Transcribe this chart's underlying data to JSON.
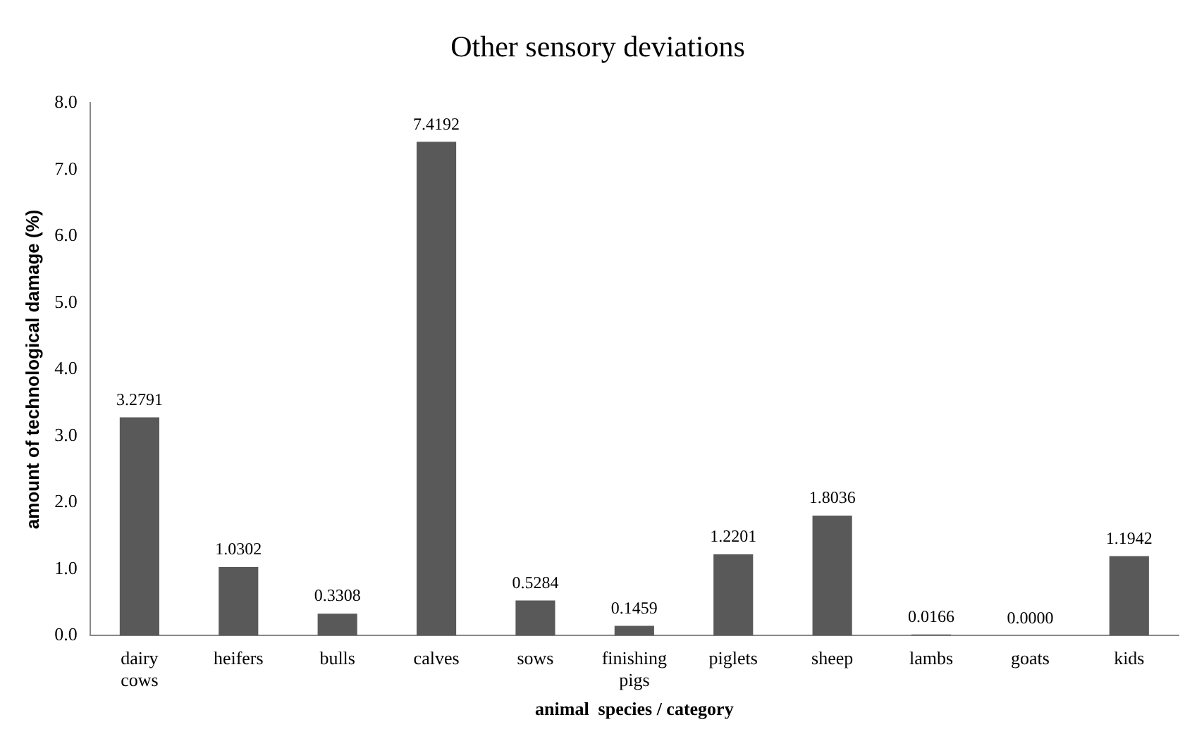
{
  "chart_data": {
    "type": "bar",
    "title": "Other sensory deviations",
    "xlabel": "animal  species / category",
    "ylabel": "amount of technological damage (%)",
    "categories": [
      "dairy cows",
      "heifers",
      "bulls",
      "calves",
      "sows",
      "finishing pigs",
      "piglets",
      "sheep",
      "lambs",
      "goats",
      "kids"
    ],
    "values": [
      3.2791,
      1.0302,
      0.3308,
      7.4192,
      0.5284,
      0.1459,
      1.2201,
      1.8036,
      0.0166,
      0.0,
      1.1942
    ],
    "value_labels": [
      "3.2791",
      "1.0302",
      "0.3308",
      "7.4192",
      "0.5284",
      "0.1459",
      "1.2201",
      "1.8036",
      "0.0166",
      "0.0000",
      "1.1942"
    ],
    "color": "#595959",
    "ylim": [
      0,
      8
    ],
    "yticks": [
      {
        "value": 0,
        "label": "0.0"
      },
      {
        "value": 1,
        "label": "1.0"
      },
      {
        "value": 2,
        "label": "2.0"
      },
      {
        "value": 3,
        "label": "3.0"
      },
      {
        "value": 4,
        "label": "4.0"
      },
      {
        "value": 5,
        "label": "5.0"
      },
      {
        "value": 6,
        "label": "6.0"
      },
      {
        "value": 7,
        "label": "7.0"
      },
      {
        "value": 8,
        "label": "8.0"
      }
    ],
    "grid": false,
    "legend": false
  }
}
